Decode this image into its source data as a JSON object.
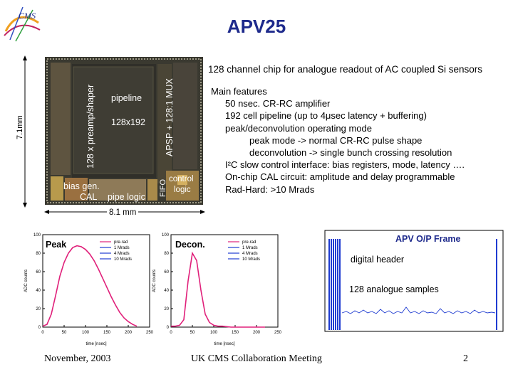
{
  "slide": {
    "title": "APV25",
    "subtitle": "128 channel chip for analogue readout of AC coupled Si sensors",
    "logo_text": "CMS",
    "features": [
      "Main features",
      "50 nsec. CR-RC amplifier",
      "192 cell pipeline (up to 4μsec latency + buffering)",
      "peak/deconvolution operating mode",
      "peak mode -> normal CR-RC pulse shape",
      "deconvolution -> single bunch crossing resolution",
      "I²C slow control interface: bias registers, mode, latency ….",
      "On-chip CAL circuit: amplitude and delay programmable",
      "Rad-Hard: >10 Mrads"
    ],
    "chip": {
      "preamp": "128 x preamp/shaper",
      "pipeline": "pipeline",
      "size": "128x192",
      "apsp": "APSP + 128:1 MUX",
      "fifo": "FIFO",
      "bias": "bias gen.",
      "cal": "CAL",
      "pipe_logic": "pipe logic",
      "control": "control",
      "logic": "logic",
      "height": "7.1mm",
      "width": "8.1 mm"
    },
    "footer": {
      "date": "November, 2003",
      "meeting": "UK CMS Collaboration Meeting",
      "page": "2"
    }
  },
  "chart_data": [
    {
      "type": "line",
      "title": "Peak",
      "xlabel": "time [nsec]",
      "ylabel": "ADC counts",
      "xlim": [
        0,
        250
      ],
      "ylim": [
        0,
        100
      ],
      "xticks": [
        0,
        50,
        100,
        150,
        200,
        250
      ],
      "yticks": [
        0,
        20,
        40,
        60,
        80,
        100
      ],
      "legend": [
        "pre-rad",
        "1 Mrads",
        "4 Mrads",
        "10 Mrads"
      ],
      "series_colors": [
        "#e0207a",
        "#1f3cd1",
        "#1f3cd1",
        "#1f3cd1"
      ],
      "x": [
        0,
        10,
        20,
        30,
        40,
        50,
        60,
        70,
        80,
        90,
        100,
        110,
        120,
        130,
        140,
        150,
        160,
        170,
        180,
        190,
        200,
        210,
        220
      ],
      "y": [
        1,
        3,
        14,
        34,
        55,
        70,
        80,
        86,
        88,
        87,
        84,
        79,
        72,
        63,
        53,
        43,
        33,
        24,
        16,
        10,
        6,
        3,
        1
      ]
    },
    {
      "type": "line",
      "title": "Decon.",
      "xlabel": "time [nsec]",
      "ylabel": "ADC counts",
      "xlim": [
        0,
        250
      ],
      "ylim": [
        0,
        100
      ],
      "xticks": [
        0,
        50,
        100,
        150,
        200,
        250
      ],
      "yticks": [
        0,
        20,
        40,
        60,
        80,
        100
      ],
      "legend": [
        "pre-rad",
        "1 Mrads",
        "4 Mrads",
        "10 Mrads"
      ],
      "series_colors": [
        "#e0207a",
        "#1f3cd1",
        "#1f3cd1",
        "#1f3cd1"
      ],
      "x": [
        0,
        10,
        20,
        30,
        40,
        50,
        60,
        70,
        80,
        90,
        100,
        110,
        120,
        140,
        160,
        180,
        200,
        220
      ],
      "y": [
        1,
        1,
        2,
        8,
        50,
        80,
        72,
        40,
        14,
        5,
        2,
        1,
        1,
        0,
        0,
        0,
        0,
        0
      ]
    },
    {
      "type": "line",
      "title": "APV O/P Frame",
      "annotations": [
        "digital header",
        "128 analogue samples"
      ]
    }
  ]
}
